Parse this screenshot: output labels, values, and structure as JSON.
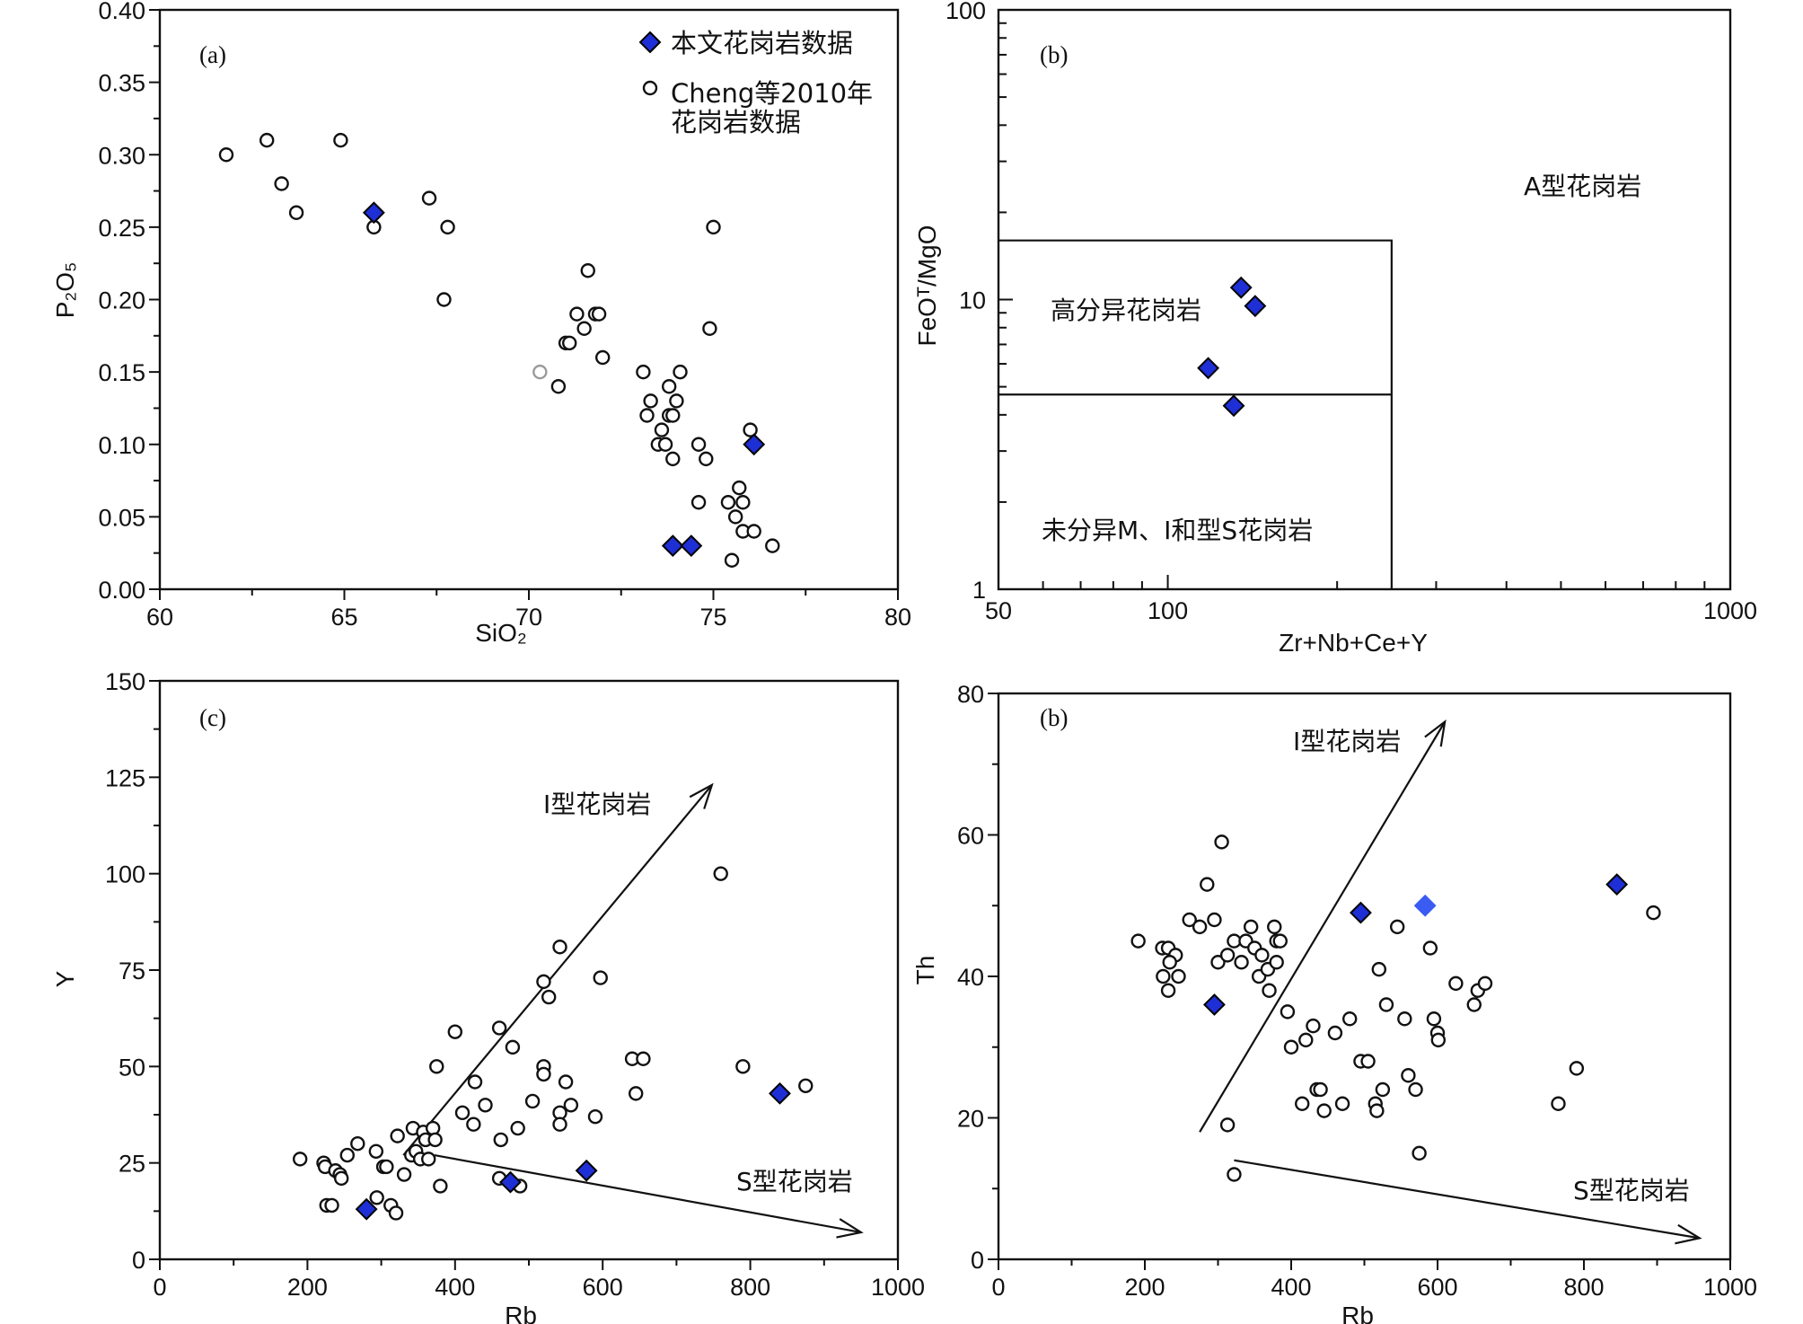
{
  "colors": {
    "diamond": "#1f2fd6",
    "diamond_light": "#3a5cf2",
    "ink": "#111111",
    "circle_gray": "#9a9a9a"
  },
  "chart_data": [
    {
      "id": "a",
      "type": "scatter",
      "panel_label": "(a)",
      "xlabel": "SiO₂",
      "ylabel": "P₂O₅",
      "xlim": [
        60,
        80
      ],
      "ylim": [
        0,
        0.4
      ],
      "x_ticks": [
        "60",
        "65",
        "70",
        "75",
        "80"
      ],
      "y_ticks": [
        "0.00",
        "0.05",
        "0.10",
        "0.15",
        "0.20",
        "0.25",
        "0.30",
        "0.35",
        "0.40"
      ],
      "legend": {
        "position": "top-right",
        "entries": [
          {
            "name": "本文花岗岩数据",
            "marker": "diamond"
          },
          {
            "name": "Cheng等2010年",
            "name2": "花岗岩数据",
            "marker": "circle"
          }
        ]
      },
      "series": [
        {
          "name": "Cheng等2010年花岗岩数据",
          "marker": "circle",
          "points": [
            [
              61.8,
              0.3
            ],
            [
              62.9,
              0.31
            ],
            [
              63.3,
              0.28
            ],
            [
              63.7,
              0.26
            ],
            [
              64.9,
              0.31
            ],
            [
              65.8,
              0.25
            ],
            [
              67.3,
              0.27
            ],
            [
              67.8,
              0.25
            ],
            [
              67.7,
              0.2
            ],
            [
              71.6,
              0.22
            ],
            [
              71.3,
              0.19
            ],
            [
              71.8,
              0.19
            ],
            [
              71.9,
              0.19
            ],
            [
              71.5,
              0.18
            ],
            [
              71.0,
              0.17
            ],
            [
              71.1,
              0.17
            ],
            [
              72.0,
              0.16
            ],
            [
              70.8,
              0.14
            ],
            [
              75.0,
              0.25
            ],
            [
              74.9,
              0.18
            ],
            [
              73.1,
              0.15
            ],
            [
              74.1,
              0.15
            ],
            [
              73.8,
              0.14
            ],
            [
              73.3,
              0.13
            ],
            [
              74.0,
              0.13
            ],
            [
              73.2,
              0.12
            ],
            [
              73.8,
              0.12
            ],
            [
              73.9,
              0.12
            ],
            [
              73.6,
              0.11
            ],
            [
              73.5,
              0.1
            ],
            [
              73.7,
              0.1
            ],
            [
              73.9,
              0.09
            ],
            [
              74.6,
              0.1
            ],
            [
              74.8,
              0.09
            ],
            [
              76.0,
              0.11
            ],
            [
              75.7,
              0.07
            ],
            [
              75.4,
              0.06
            ],
            [
              75.8,
              0.06
            ],
            [
              75.6,
              0.05
            ],
            [
              75.8,
              0.04
            ],
            [
              76.1,
              0.04
            ],
            [
              74.6,
              0.06
            ],
            [
              76.6,
              0.03
            ],
            [
              75.5,
              0.02
            ]
          ]
        },
        {
          "name": "gray circle",
          "marker": "circle_gray",
          "points": [
            [
              70.3,
              0.15
            ]
          ]
        },
        {
          "name": "本文花岗岩数据",
          "marker": "diamond",
          "points": [
            [
              65.8,
              0.26
            ],
            [
              76.1,
              0.1
            ],
            [
              73.9,
              0.03
            ],
            [
              74.4,
              0.03
            ]
          ]
        }
      ]
    },
    {
      "id": "b1",
      "type": "scatter",
      "panel_label": "(b)",
      "xlabel": "Zr+Nb+Ce+Y",
      "ylabel": "FeOᵀ/MgO",
      "xscale": "log",
      "yscale": "log",
      "xlim": [
        50,
        1000
      ],
      "ylim": [
        1,
        100
      ],
      "x_ticks": [
        "50",
        "100",
        "1000"
      ],
      "y_ticks": [
        "1",
        "10",
        "100"
      ],
      "fields": {
        "a_type": "A型花岗岩",
        "fractionated": "高分异花岗岩",
        "unfractionated": "未分异M、I和型S花岗岩"
      },
      "boundaries": {
        "zr_limit": 250,
        "upper_ratio": 16,
        "lower_ratio": 4.7
      },
      "series": [
        {
          "name": "本文花岗岩数据",
          "marker": "diamond",
          "points": [
            [
              135,
              11
            ],
            [
              143,
              9.5
            ],
            [
              118,
              5.8
            ],
            [
              131,
              4.3
            ]
          ]
        }
      ]
    },
    {
      "id": "c",
      "type": "scatter",
      "panel_label": "(c)",
      "xlabel": "Rb",
      "ylabel": "Y",
      "xlim": [
        0,
        1000
      ],
      "ylim": [
        0,
        150
      ],
      "x_ticks": [
        "0",
        "200",
        "400",
        "600",
        "800",
        "1000"
      ],
      "y_ticks": [
        "0",
        "25",
        "50",
        "75",
        "100",
        "125",
        "150"
      ],
      "annotations": {
        "i_type": "I型花岗岩",
        "s_type": "S型花岗岩"
      },
      "arrows": [
        {
          "from": [
            330,
            27
          ],
          "to": [
            748,
            123
          ]
        },
        {
          "from": [
            372,
            27
          ],
          "to": [
            950,
            7
          ]
        }
      ],
      "series": [
        {
          "name": "Cheng等2010年花岗岩数据",
          "marker": "circle",
          "points": [
            [
              190,
              26
            ],
            [
              222,
              25
            ],
            [
              224,
              24
            ],
            [
              238,
              23
            ],
            [
              244,
              22
            ],
            [
              246,
              21
            ],
            [
              226,
              14
            ],
            [
              233,
              14
            ],
            [
              254,
              27
            ],
            [
              268,
              30
            ],
            [
              293,
              28
            ],
            [
              303,
              24
            ],
            [
              307,
              24
            ],
            [
              322,
              32
            ],
            [
              331,
              22
            ],
            [
              341,
              27
            ],
            [
              343,
              34
            ],
            [
              347,
              28
            ],
            [
              353,
              26
            ],
            [
              357,
              33
            ],
            [
              360,
              31
            ],
            [
              364,
              26
            ],
            [
              370,
              34
            ],
            [
              373,
              31
            ],
            [
              294,
              16
            ],
            [
              313,
              14
            ],
            [
              320,
              12
            ],
            [
              380,
              19
            ],
            [
              375,
              50
            ],
            [
              400,
              59
            ],
            [
              410,
              38
            ],
            [
              425,
              35
            ],
            [
              427,
              46
            ],
            [
              441,
              40
            ],
            [
              460,
              60
            ],
            [
              462,
              31
            ],
            [
              478,
              55
            ],
            [
              485,
              34
            ],
            [
              505,
              41
            ],
            [
              520,
              50
            ],
            [
              520,
              48
            ],
            [
              520,
              72
            ],
            [
              527,
              68
            ],
            [
              542,
              81
            ],
            [
              542,
              38
            ],
            [
              542,
              35
            ],
            [
              550,
              46
            ],
            [
              557,
              40
            ],
            [
              597,
              73
            ],
            [
              590,
              37
            ],
            [
              640,
              52
            ],
            [
              655,
              52
            ],
            [
              645,
              43
            ],
            [
              760,
              100
            ],
            [
              790,
              50
            ],
            [
              875,
              45
            ],
            [
              460,
              21
            ],
            [
              488,
              19
            ]
          ]
        },
        {
          "name": "本文花岗岩数据",
          "marker": "diamond",
          "points": [
            [
              280,
              13
            ],
            [
              475,
              20
            ],
            [
              578,
              23
            ],
            [
              840,
              43
            ]
          ]
        }
      ]
    },
    {
      "id": "d",
      "type": "scatter",
      "panel_label": "(b)",
      "xlabel": "Rb",
      "ylabel": "Th",
      "xlim": [
        0,
        1000
      ],
      "ylim": [
        0,
        80
      ],
      "x_ticks": [
        "0",
        "200",
        "400",
        "600",
        "800",
        "1000"
      ],
      "y_ticks": [
        "0",
        "20",
        "40",
        "60",
        "80"
      ],
      "annotations": {
        "i_type": "I型花岗岩",
        "s_type": "S型花岗岩"
      },
      "arrows": [
        {
          "from": [
            275,
            18
          ],
          "to": [
            610,
            76
          ]
        },
        {
          "from": [
            322,
            14
          ],
          "to": [
            958,
            3
          ]
        }
      ],
      "series": [
        {
          "name": "Cheng等2010年花岗岩数据",
          "marker": "circle",
          "points": [
            [
              191,
              45
            ],
            [
              224,
              44
            ],
            [
              232,
              44
            ],
            [
              242,
              43
            ],
            [
              234,
              42
            ],
            [
              225,
              40
            ],
            [
              232,
              38
            ],
            [
              246,
              40
            ],
            [
              261,
              48
            ],
            [
              275,
              47
            ],
            [
              285,
              53
            ],
            [
              295,
              48
            ],
            [
              305,
              59
            ],
            [
              300,
              42
            ],
            [
              313,
              43
            ],
            [
              322,
              45
            ],
            [
              332,
              42
            ],
            [
              338,
              45
            ],
            [
              345,
              47
            ],
            [
              350,
              44
            ],
            [
              356,
              40
            ],
            [
              360,
              43
            ],
            [
              368,
              41
            ],
            [
              370,
              38
            ],
            [
              380,
              45
            ],
            [
              380,
              42
            ],
            [
              385,
              45
            ],
            [
              377,
              47
            ],
            [
              395,
              35
            ],
            [
              400,
              30
            ],
            [
              415,
              22
            ],
            [
              420,
              31
            ],
            [
              430,
              33
            ],
            [
              435,
              24
            ],
            [
              440,
              24
            ],
            [
              445,
              21
            ],
            [
              460,
              32
            ],
            [
              470,
              22
            ],
            [
              480,
              34
            ],
            [
              495,
              28
            ],
            [
              505,
              28
            ],
            [
              515,
              22
            ],
            [
              517,
              21
            ],
            [
              525,
              24
            ],
            [
              520,
              41
            ],
            [
              530,
              36
            ],
            [
              545,
              47
            ],
            [
              555,
              34
            ],
            [
              560,
              26
            ],
            [
              570,
              24
            ],
            [
              575,
              15
            ],
            [
              590,
              44
            ],
            [
              595,
              34
            ],
            [
              600,
              32
            ],
            [
              601,
              31
            ],
            [
              625,
              39
            ],
            [
              650,
              36
            ],
            [
              655,
              38
            ],
            [
              665,
              39
            ],
            [
              765,
              22
            ],
            [
              790,
              27
            ],
            [
              895,
              49
            ],
            [
              322,
              12
            ],
            [
              313,
              19
            ]
          ]
        },
        {
          "name": "本文花岗岩数据",
          "marker": "diamond",
          "points": [
            [
              295,
              36
            ],
            [
              495,
              49
            ],
            [
              845,
              53
            ]
          ]
        },
        {
          "name": "light diamond",
          "marker": "diamond_light",
          "points": [
            [
              583,
              50
            ]
          ]
        }
      ]
    }
  ]
}
